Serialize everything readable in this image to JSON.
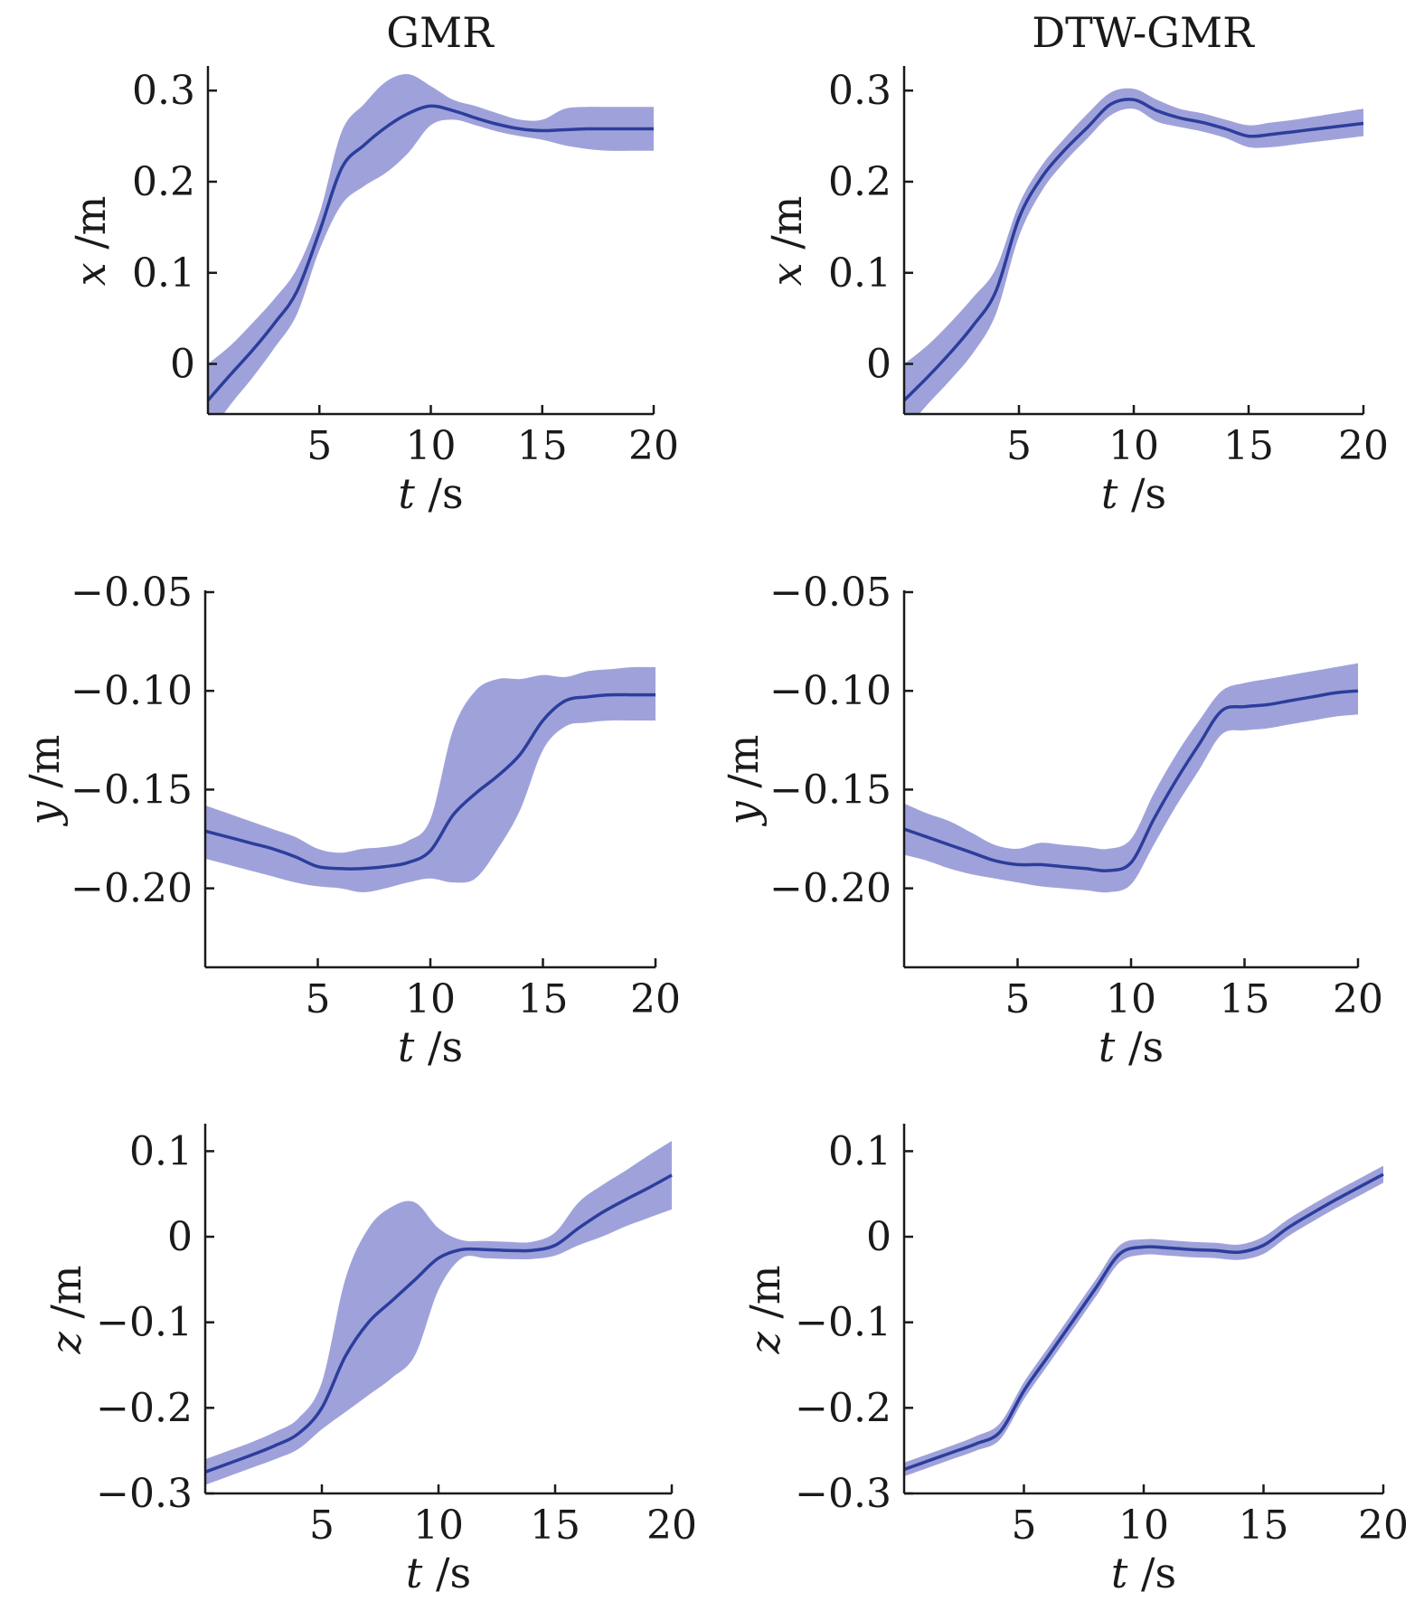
{
  "colors": {
    "band": "#9a9dd8",
    "mean": "#2c3e9c",
    "axis": "#1a1a1a"
  },
  "chart_data": [
    {
      "type": "line",
      "title": "GMR",
      "xlabel_var": "t",
      "xlabel_unit": " /s",
      "ylabel_var": "x",
      "ylabel_unit": " /m",
      "xlim": [
        0,
        20
      ],
      "ylim": [
        -0.055,
        0.325
      ],
      "xticks": [
        5,
        10,
        15,
        20
      ],
      "xtick_labels": [
        "5",
        "10",
        "15",
        "20"
      ],
      "yticks": [
        0,
        0.1,
        0.2,
        0.3
      ],
      "ytick_labels": [
        "0",
        "0.1",
        "0.2",
        "0.3"
      ],
      "x": [
        0,
        1,
        2,
        3,
        4,
        5,
        6,
        7,
        8,
        9,
        10,
        11,
        12,
        13,
        14,
        15,
        16,
        17,
        18,
        19,
        20
      ],
      "mean": [
        -0.04,
        -0.012,
        0.015,
        0.045,
        0.08,
        0.145,
        0.215,
        0.24,
        0.26,
        0.275,
        0.283,
        0.278,
        0.27,
        0.263,
        0.258,
        0.256,
        0.257,
        0.258,
        0.258,
        0.258,
        0.258
      ],
      "upper": [
        0.0,
        0.02,
        0.045,
        0.072,
        0.105,
        0.165,
        0.255,
        0.285,
        0.31,
        0.318,
        0.305,
        0.29,
        0.283,
        0.275,
        0.268,
        0.268,
        0.28,
        0.282,
        0.282,
        0.282,
        0.282
      ],
      "lower": [
        -0.08,
        -0.045,
        -0.015,
        0.018,
        0.055,
        0.125,
        0.175,
        0.195,
        0.21,
        0.232,
        0.262,
        0.268,
        0.262,
        0.255,
        0.25,
        0.246,
        0.24,
        0.236,
        0.234,
        0.234,
        0.234
      ]
    },
    {
      "type": "line",
      "title": "DTW-GMR",
      "xlabel_var": "t",
      "xlabel_unit": " /s",
      "ylabel_var": "x",
      "ylabel_unit": " /m",
      "xlim": [
        0,
        20
      ],
      "ylim": [
        -0.055,
        0.325
      ],
      "xticks": [
        5,
        10,
        15,
        20
      ],
      "xtick_labels": [
        "5",
        "10",
        "15",
        "20"
      ],
      "yticks": [
        0,
        0.1,
        0.2,
        0.3
      ],
      "ytick_labels": [
        "0",
        "0.1",
        "0.2",
        "0.3"
      ],
      "x": [
        0,
        1,
        2,
        3,
        4,
        5,
        6,
        7,
        8,
        9,
        10,
        11,
        12,
        13,
        14,
        15,
        16,
        17,
        18,
        19,
        20
      ],
      "mean": [
        -0.04,
        -0.015,
        0.012,
        0.042,
        0.08,
        0.16,
        0.205,
        0.235,
        0.26,
        0.285,
        0.29,
        0.278,
        0.27,
        0.265,
        0.258,
        0.25,
        0.252,
        0.255,
        0.258,
        0.261,
        0.264
      ],
      "upper": [
        0.0,
        0.02,
        0.045,
        0.073,
        0.105,
        0.175,
        0.218,
        0.248,
        0.275,
        0.298,
        0.302,
        0.29,
        0.28,
        0.275,
        0.268,
        0.262,
        0.265,
        0.268,
        0.272,
        0.276,
        0.28
      ],
      "lower": [
        -0.075,
        -0.045,
        -0.018,
        0.012,
        0.055,
        0.14,
        0.19,
        0.222,
        0.248,
        0.273,
        0.28,
        0.266,
        0.26,
        0.255,
        0.248,
        0.238,
        0.238,
        0.241,
        0.244,
        0.247,
        0.25
      ]
    },
    {
      "type": "line",
      "title": "",
      "xlabel_var": "t",
      "xlabel_unit": " /s",
      "ylabel_var": "y",
      "ylabel_unit": " /m",
      "xlim": [
        0,
        20
      ],
      "ylim": [
        -0.24,
        -0.05
      ],
      "xticks": [
        5,
        10,
        15,
        20
      ],
      "xtick_labels": [
        "5",
        "10",
        "15",
        "20"
      ],
      "yticks": [
        -0.05,
        -0.1,
        -0.15,
        -0.2
      ],
      "ytick_labels": [
        "−0.05",
        "−0.10",
        "−0.15",
        "−0.20"
      ],
      "x": [
        0,
        1,
        2,
        3,
        4,
        5,
        6,
        7,
        8,
        9,
        10,
        11,
        12,
        13,
        14,
        15,
        16,
        17,
        18,
        19,
        20
      ],
      "mean": [
        -0.171,
        -0.174,
        -0.177,
        -0.18,
        -0.184,
        -0.189,
        -0.19,
        -0.19,
        -0.189,
        -0.187,
        -0.181,
        -0.163,
        -0.152,
        -0.143,
        -0.132,
        -0.115,
        -0.105,
        -0.103,
        -0.102,
        -0.102,
        -0.102
      ],
      "upper": [
        -0.158,
        -0.162,
        -0.166,
        -0.17,
        -0.174,
        -0.18,
        -0.182,
        -0.18,
        -0.179,
        -0.176,
        -0.165,
        -0.12,
        -0.1,
        -0.094,
        -0.094,
        -0.092,
        -0.093,
        -0.09,
        -0.089,
        -0.088,
        -0.088
      ],
      "lower": [
        -0.185,
        -0.188,
        -0.191,
        -0.194,
        -0.197,
        -0.199,
        -0.2,
        -0.202,
        -0.2,
        -0.197,
        -0.195,
        -0.197,
        -0.195,
        -0.18,
        -0.16,
        -0.13,
        -0.118,
        -0.116,
        -0.115,
        -0.115,
        -0.115
      ]
    },
    {
      "type": "line",
      "title": "",
      "xlabel_var": "t",
      "xlabel_unit": " /s",
      "ylabel_var": "y",
      "ylabel_unit": " /m",
      "xlim": [
        0,
        20
      ],
      "ylim": [
        -0.24,
        -0.05
      ],
      "xticks": [
        5,
        10,
        15,
        20
      ],
      "xtick_labels": [
        "5",
        "10",
        "15",
        "20"
      ],
      "yticks": [
        -0.05,
        -0.1,
        -0.15,
        -0.2
      ],
      "ytick_labels": [
        "−0.05",
        "−0.10",
        "−0.15",
        "−0.20"
      ],
      "x": [
        0,
        1,
        2,
        3,
        4,
        5,
        6,
        7,
        8,
        9,
        10,
        11,
        12,
        13,
        14,
        15,
        16,
        17,
        18,
        19,
        20
      ],
      "mean": [
        -0.17,
        -0.174,
        -0.178,
        -0.182,
        -0.186,
        -0.188,
        -0.188,
        -0.189,
        -0.19,
        -0.191,
        -0.187,
        -0.165,
        -0.145,
        -0.127,
        -0.11,
        -0.108,
        -0.107,
        -0.105,
        -0.103,
        -0.101,
        -0.1
      ],
      "upper": [
        -0.157,
        -0.162,
        -0.166,
        -0.172,
        -0.178,
        -0.18,
        -0.177,
        -0.178,
        -0.179,
        -0.18,
        -0.175,
        -0.152,
        -0.132,
        -0.115,
        -0.1,
        -0.096,
        -0.094,
        -0.092,
        -0.09,
        -0.088,
        -0.086
      ],
      "lower": [
        -0.183,
        -0.186,
        -0.19,
        -0.193,
        -0.195,
        -0.197,
        -0.199,
        -0.2,
        -0.201,
        -0.202,
        -0.198,
        -0.178,
        -0.158,
        -0.14,
        -0.122,
        -0.12,
        -0.119,
        -0.117,
        -0.115,
        -0.113,
        -0.112
      ]
    },
    {
      "type": "line",
      "title": "",
      "xlabel_var": "t",
      "xlabel_unit": " /s",
      "ylabel_var": "z",
      "ylabel_unit": " /m",
      "xlim": [
        0,
        20
      ],
      "ylim": [
        -0.3,
        0.13
      ],
      "xticks": [
        5,
        10,
        15,
        20
      ],
      "xtick_labels": [
        "5",
        "10",
        "15",
        "20"
      ],
      "yticks": [
        0.1,
        0,
        -0.1,
        -0.2,
        -0.3
      ],
      "ytick_labels": [
        "0.1",
        "0",
        "−0.1",
        "−0.2",
        "−0.3"
      ],
      "x": [
        0,
        1,
        2,
        3,
        4,
        5,
        6,
        7,
        8,
        9,
        10,
        11,
        12,
        13,
        14,
        15,
        16,
        17,
        18,
        19,
        20
      ],
      "mean": [
        -0.275,
        -0.265,
        -0.255,
        -0.244,
        -0.23,
        -0.2,
        -0.14,
        -0.1,
        -0.075,
        -0.05,
        -0.025,
        -0.015,
        -0.015,
        -0.016,
        -0.016,
        -0.01,
        0.01,
        0.028,
        0.043,
        0.057,
        0.072
      ],
      "upper": [
        -0.26,
        -0.25,
        -0.24,
        -0.228,
        -0.212,
        -0.17,
        -0.05,
        0.01,
        0.035,
        0.04,
        0.01,
        -0.004,
        -0.005,
        -0.006,
        -0.006,
        0.005,
        0.04,
        0.06,
        0.077,
        0.095,
        0.112
      ],
      "lower": [
        -0.29,
        -0.28,
        -0.27,
        -0.26,
        -0.248,
        -0.225,
        -0.205,
        -0.185,
        -0.165,
        -0.138,
        -0.062,
        -0.025,
        -0.025,
        -0.026,
        -0.026,
        -0.022,
        -0.01,
        0.0,
        0.012,
        0.022,
        0.032
      ]
    },
    {
      "type": "line",
      "title": "",
      "xlabel_var": "t",
      "xlabel_unit": " /s",
      "ylabel_var": "z",
      "ylabel_unit": " /m",
      "xlim": [
        0,
        20
      ],
      "ylim": [
        -0.3,
        0.13
      ],
      "xticks": [
        5,
        10,
        15,
        20
      ],
      "xtick_labels": [
        "5",
        "10",
        "15",
        "20"
      ],
      "yticks": [
        0.1,
        0,
        -0.1,
        -0.2,
        -0.3
      ],
      "ytick_labels": [
        "0.1",
        "0",
        "−0.1",
        "−0.2",
        "−0.3"
      ],
      "x": [
        0,
        1,
        2,
        3,
        4,
        5,
        6,
        7,
        8,
        9,
        10,
        11,
        12,
        13,
        14,
        15,
        16,
        17,
        18,
        19,
        20
      ],
      "mean": [
        -0.272,
        -0.262,
        -0.252,
        -0.242,
        -0.228,
        -0.18,
        -0.14,
        -0.1,
        -0.06,
        -0.02,
        -0.012,
        -0.013,
        -0.015,
        -0.016,
        -0.018,
        -0.01,
        0.01,
        0.027,
        0.043,
        0.058,
        0.073
      ],
      "upper": [
        -0.264,
        -0.254,
        -0.244,
        -0.233,
        -0.218,
        -0.17,
        -0.13,
        -0.09,
        -0.05,
        -0.01,
        -0.003,
        -0.004,
        -0.006,
        -0.007,
        -0.009,
        0.0,
        0.02,
        0.037,
        0.053,
        0.068,
        0.083
      ],
      "lower": [
        -0.28,
        -0.27,
        -0.26,
        -0.25,
        -0.237,
        -0.19,
        -0.15,
        -0.11,
        -0.07,
        -0.03,
        -0.021,
        -0.022,
        -0.024,
        -0.025,
        -0.027,
        -0.02,
        0.0,
        0.017,
        0.033,
        0.048,
        0.063
      ]
    }
  ]
}
